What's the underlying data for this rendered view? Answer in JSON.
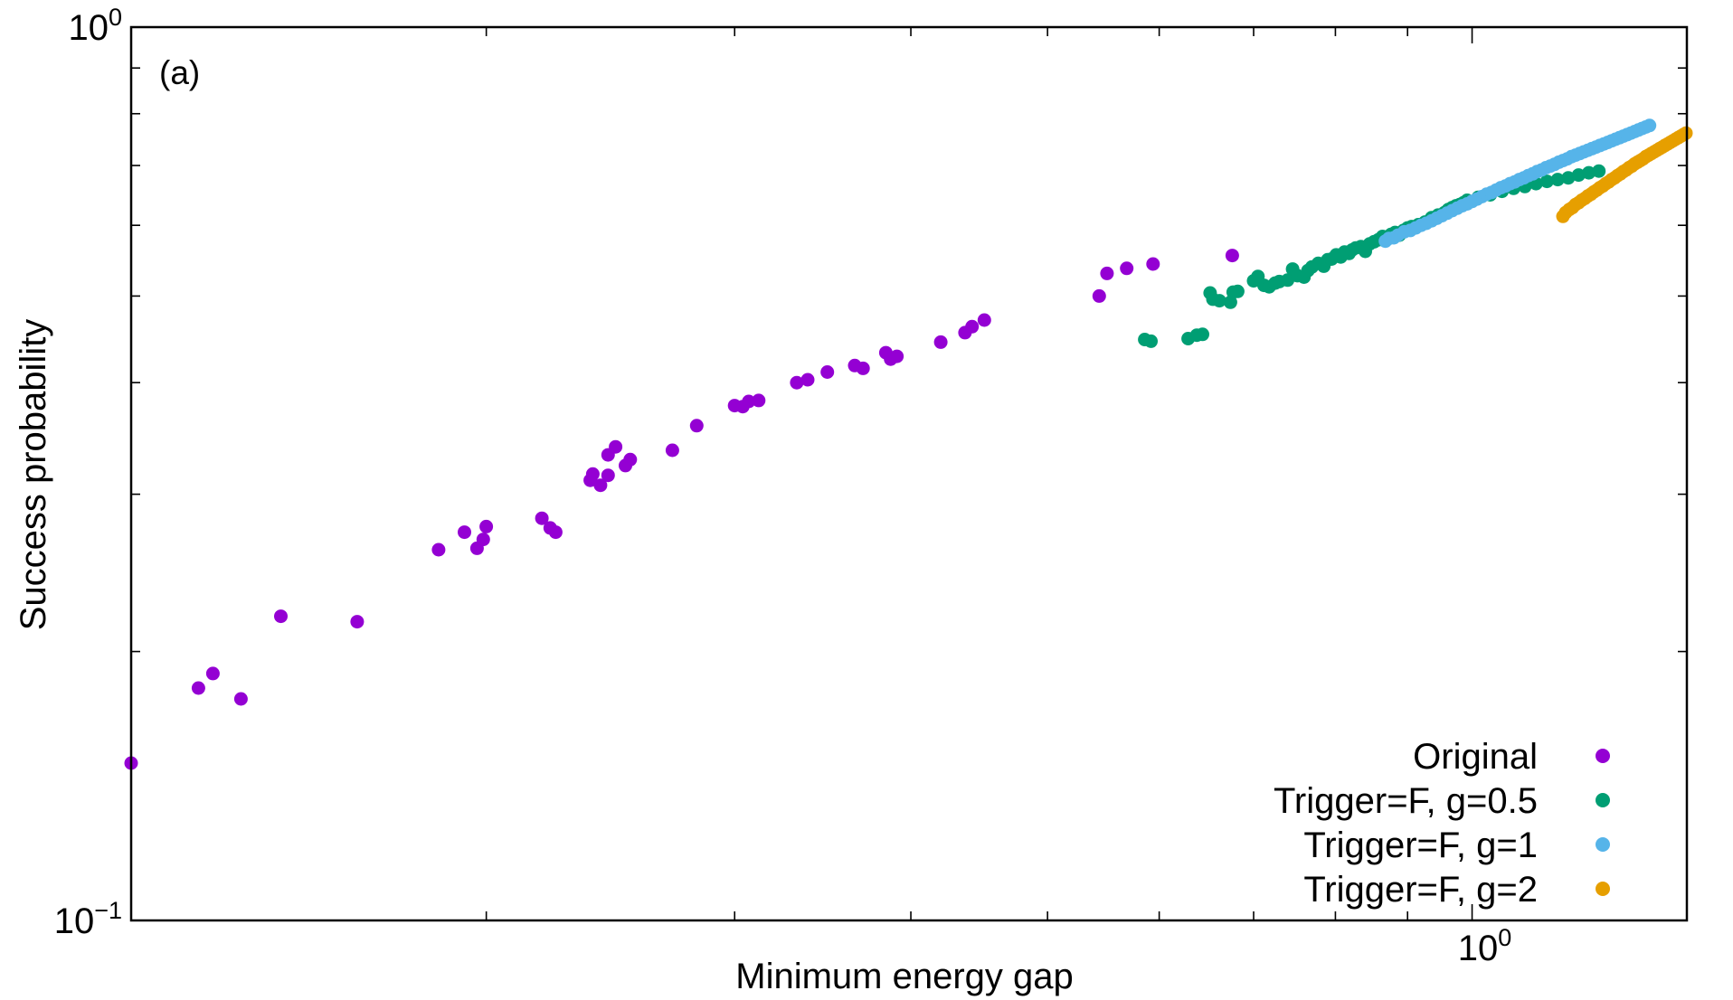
{
  "chart_data": {
    "type": "scatter",
    "title": "",
    "annotation": "(a)",
    "xlabel": "Minimum energy gap",
    "ylabel": "Success probability",
    "x_scale": "log",
    "y_scale": "log",
    "xlim": [
      0.112,
      1.42
    ],
    "ylim": [
      0.1,
      1.0
    ],
    "grid": false,
    "legend_position": "bottom-right",
    "x_tick_labels": [
      {
        "value": 1.0,
        "base": "10",
        "exp": "0"
      }
    ],
    "y_tick_labels": [
      {
        "value": 1.0,
        "base": "10",
        "exp": "0"
      },
      {
        "value": 0.1,
        "base": "10",
        "exp": "−1"
      }
    ],
    "series": [
      {
        "name": "Original",
        "color": "#9400d3",
        "points": [
          [
            0.112,
            0.15
          ],
          [
            0.125,
            0.182
          ],
          [
            0.128,
            0.189
          ],
          [
            0.134,
            0.177
          ],
          [
            0.143,
            0.219
          ],
          [
            0.162,
            0.216
          ],
          [
            0.185,
            0.26
          ],
          [
            0.193,
            0.272
          ],
          [
            0.197,
            0.261
          ],
          [
            0.2,
            0.276
          ],
          [
            0.199,
            0.267
          ],
          [
            0.219,
            0.282
          ],
          [
            0.222,
            0.275
          ],
          [
            0.224,
            0.272
          ],
          [
            0.237,
            0.311
          ],
          [
            0.238,
            0.316
          ],
          [
            0.241,
            0.307
          ],
          [
            0.244,
            0.332
          ],
          [
            0.247,
            0.339
          ],
          [
            0.244,
            0.315
          ],
          [
            0.251,
            0.323
          ],
          [
            0.253,
            0.328
          ],
          [
            0.271,
            0.336
          ],
          [
            0.282,
            0.358
          ],
          [
            0.3,
            0.377
          ],
          [
            0.304,
            0.376
          ],
          [
            0.307,
            0.381
          ],
          [
            0.312,
            0.382
          ],
          [
            0.332,
            0.4
          ],
          [
            0.338,
            0.403
          ],
          [
            0.349,
            0.411
          ],
          [
            0.365,
            0.418
          ],
          [
            0.37,
            0.415
          ],
          [
            0.384,
            0.432
          ],
          [
            0.387,
            0.425
          ],
          [
            0.391,
            0.428
          ],
          [
            0.42,
            0.444
          ],
          [
            0.437,
            0.455
          ],
          [
            0.442,
            0.462
          ],
          [
            0.451,
            0.47
          ],
          [
            0.544,
            0.5
          ],
          [
            0.551,
            0.53
          ],
          [
            0.569,
            0.537
          ],
          [
            0.594,
            0.543
          ],
          [
            0.676,
            0.555
          ]
        ]
      },
      {
        "name": "Trigger=F, g=0.5",
        "color": "#009e73",
        "points": [
          [
            0.586,
            0.447
          ],
          [
            0.592,
            0.445
          ],
          [
            0.629,
            0.448
          ],
          [
            0.638,
            0.452
          ],
          [
            0.644,
            0.453
          ],
          [
            0.652,
            0.504
          ],
          [
            0.655,
            0.496
          ],
          [
            0.662,
            0.494
          ],
          [
            0.674,
            0.492
          ],
          [
            0.677,
            0.505
          ],
          [
            0.682,
            0.506
          ],
          [
            0.7,
            0.52
          ],
          [
            0.705,
            0.526
          ],
          [
            0.712,
            0.514
          ],
          [
            0.718,
            0.512
          ],
          [
            0.725,
            0.517
          ],
          [
            0.73,
            0.519
          ],
          [
            0.74,
            0.521
          ],
          [
            0.746,
            0.536
          ],
          [
            0.752,
            0.527
          ],
          [
            0.76,
            0.525
          ],
          [
            0.765,
            0.534
          ],
          [
            0.77,
            0.539
          ],
          [
            0.778,
            0.544
          ],
          [
            0.785,
            0.54
          ],
          [
            0.79,
            0.549
          ],
          [
            0.795,
            0.55
          ],
          [
            0.801,
            0.556
          ],
          [
            0.807,
            0.553
          ],
          [
            0.812,
            0.56
          ],
          [
            0.818,
            0.558
          ],
          [
            0.822,
            0.563
          ],
          [
            0.827,
            0.566
          ],
          [
            0.834,
            0.568
          ],
          [
            0.84,
            0.561
          ],
          [
            0.846,
            0.572
          ],
          [
            0.852,
            0.575
          ],
          [
            0.858,
            0.578
          ],
          [
            0.864,
            0.583
          ],
          [
            0.87,
            0.58
          ],
          [
            0.876,
            0.586
          ],
          [
            0.882,
            0.589
          ],
          [
            0.888,
            0.585
          ],
          [
            0.894,
            0.592
          ],
          [
            0.9,
            0.596
          ],
          [
            0.906,
            0.598
          ],
          [
            0.916,
            0.601
          ],
          [
            0.926,
            0.605
          ],
          [
            0.936,
            0.612
          ],
          [
            0.946,
            0.616
          ],
          [
            0.956,
            0.62
          ],
          [
            0.962,
            0.625
          ],
          [
            0.968,
            0.628
          ],
          [
            0.974,
            0.631
          ],
          [
            0.98,
            0.633
          ],
          [
            0.986,
            0.636
          ],
          [
            0.992,
            0.64
          ],
          [
            1.01,
            0.645
          ],
          [
            1.03,
            0.649
          ],
          [
            1.05,
            0.655
          ],
          [
            1.07,
            0.66
          ],
          [
            1.09,
            0.663
          ],
          [
            1.11,
            0.668
          ],
          [
            1.13,
            0.672
          ],
          [
            1.15,
            0.675
          ],
          [
            1.17,
            0.678
          ],
          [
            1.19,
            0.683
          ],
          [
            1.21,
            0.687
          ],
          [
            1.23,
            0.69
          ]
        ]
      },
      {
        "name": "Trigger=F, g=1",
        "color": "#56b4e9",
        "points": [
          [
            0.868,
            0.576
          ],
          [
            0.873,
            0.58
          ],
          [
            0.88,
            0.581
          ],
          [
            0.886,
            0.585
          ],
          [
            0.895,
            0.59
          ],
          [
            0.904,
            0.592
          ],
          [
            0.912,
            0.596
          ],
          [
            0.92,
            0.6
          ],
          [
            0.928,
            0.603
          ],
          [
            0.936,
            0.607
          ],
          [
            0.944,
            0.611
          ],
          [
            0.952,
            0.615
          ],
          [
            0.96,
            0.619
          ],
          [
            0.968,
            0.623
          ],
          [
            0.976,
            0.627
          ],
          [
            0.984,
            0.631
          ],
          [
            0.992,
            0.634
          ],
          [
            1.0,
            0.638
          ],
          [
            1.008,
            0.642
          ],
          [
            1.016,
            0.646
          ],
          [
            1.024,
            0.65
          ],
          [
            1.032,
            0.653
          ],
          [
            1.04,
            0.657
          ],
          [
            1.048,
            0.661
          ],
          [
            1.056,
            0.664
          ],
          [
            1.064,
            0.668
          ],
          [
            1.072,
            0.671
          ],
          [
            1.08,
            0.675
          ],
          [
            1.088,
            0.678
          ],
          [
            1.096,
            0.682
          ],
          [
            1.104,
            0.685
          ],
          [
            1.112,
            0.689
          ],
          [
            1.12,
            0.692
          ],
          [
            1.128,
            0.696
          ],
          [
            1.136,
            0.699
          ],
          [
            1.144,
            0.702
          ],
          [
            1.152,
            0.706
          ],
          [
            1.16,
            0.709
          ],
          [
            1.168,
            0.712
          ],
          [
            1.176,
            0.716
          ],
          [
            1.184,
            0.719
          ],
          [
            1.192,
            0.722
          ],
          [
            1.2,
            0.725
          ],
          [
            1.208,
            0.728
          ],
          [
            1.216,
            0.731
          ],
          [
            1.224,
            0.734
          ],
          [
            1.232,
            0.737
          ],
          [
            1.24,
            0.74
          ],
          [
            1.248,
            0.743
          ],
          [
            1.256,
            0.746
          ],
          [
            1.264,
            0.749
          ],
          [
            1.272,
            0.752
          ],
          [
            1.28,
            0.755
          ],
          [
            1.288,
            0.758
          ],
          [
            1.296,
            0.761
          ],
          [
            1.304,
            0.764
          ],
          [
            1.312,
            0.767
          ],
          [
            1.32,
            0.77
          ],
          [
            1.328,
            0.773
          ],
          [
            1.336,
            0.776
          ]
        ]
      },
      {
        "name": "Trigger=F, g=2",
        "color": "#e69f00",
        "points": [
          [
            1.16,
            0.614
          ],
          [
            1.165,
            0.62
          ],
          [
            1.172,
            0.625
          ],
          [
            1.178,
            0.628
          ],
          [
            1.184,
            0.633
          ],
          [
            1.19,
            0.636
          ],
          [
            1.196,
            0.64
          ],
          [
            1.202,
            0.643
          ],
          [
            1.208,
            0.647
          ],
          [
            1.214,
            0.65
          ],
          [
            1.22,
            0.654
          ],
          [
            1.226,
            0.657
          ],
          [
            1.232,
            0.661
          ],
          [
            1.238,
            0.664
          ],
          [
            1.244,
            0.668
          ],
          [
            1.25,
            0.671
          ],
          [
            1.256,
            0.675
          ],
          [
            1.262,
            0.678
          ],
          [
            1.268,
            0.682
          ],
          [
            1.274,
            0.685
          ],
          [
            1.28,
            0.689
          ],
          [
            1.286,
            0.692
          ],
          [
            1.292,
            0.696
          ],
          [
            1.298,
            0.699
          ],
          [
            1.304,
            0.703
          ],
          [
            1.31,
            0.706
          ],
          [
            1.316,
            0.709
          ],
          [
            1.322,
            0.712
          ],
          [
            1.328,
            0.716
          ],
          [
            1.334,
            0.719
          ],
          [
            1.34,
            0.722
          ],
          [
            1.346,
            0.725
          ],
          [
            1.352,
            0.728
          ],
          [
            1.358,
            0.731
          ],
          [
            1.364,
            0.734
          ],
          [
            1.37,
            0.737
          ],
          [
            1.376,
            0.74
          ],
          [
            1.382,
            0.743
          ],
          [
            1.388,
            0.746
          ],
          [
            1.394,
            0.749
          ],
          [
            1.4,
            0.752
          ],
          [
            1.406,
            0.755
          ],
          [
            1.412,
            0.758
          ],
          [
            1.418,
            0.761
          ]
        ]
      }
    ]
  }
}
